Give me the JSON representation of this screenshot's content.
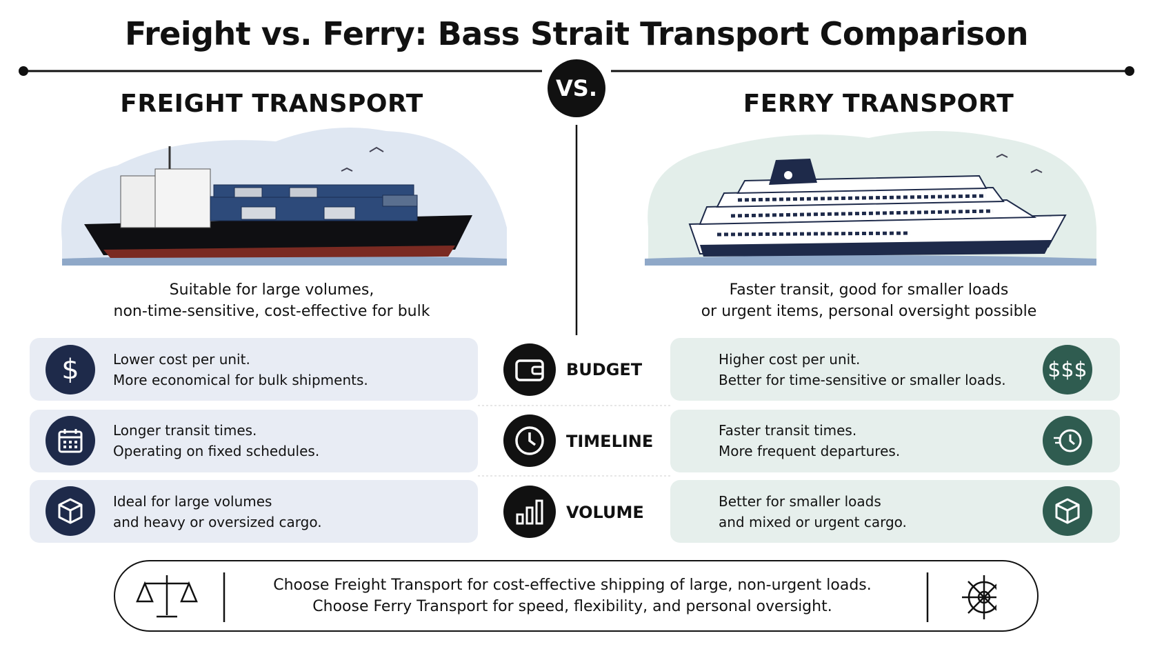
{
  "title": "Freight vs. Ferry: Bass Strait Transport Comparison",
  "vs_label": "VS.",
  "left": {
    "heading": "FREIGHT TRANSPORT",
    "description": [
      "Suitable for large volumes,",
      "non-time-sensitive, cost-effective for bulk"
    ]
  },
  "right": {
    "heading": "FERRY TRANSPORT",
    "description": [
      "Faster transit, good for smaller loads",
      "or urgent items, personal oversight possible"
    ]
  },
  "rows": [
    {
      "label": "BUDGET",
      "left_icon": "$",
      "left": [
        "Lower cost per unit.",
        "More economical for bulk shipments."
      ],
      "right_icon": "$$$",
      "right": [
        "Higher cost per unit.",
        "Better for time-sensitive or smaller loads."
      ]
    },
    {
      "label": "TIMELINE",
      "left": [
        "Longer transit times.",
        "Operating on fixed schedules."
      ],
      "right": [
        "Faster transit times.",
        "More frequent departures."
      ]
    },
    {
      "label": "VOLUME",
      "left": [
        "Ideal for large volumes",
        "and heavy or oversized cargo."
      ],
      "right": [
        "Better for smaller loads",
        "and mixed or urgent cargo."
      ]
    }
  ],
  "summary": [
    "Choose Freight Transport for cost-effective shipping of large, non-urgent loads.",
    "Choose Ferry Transport for speed, flexibility, and personal oversight."
  ]
}
